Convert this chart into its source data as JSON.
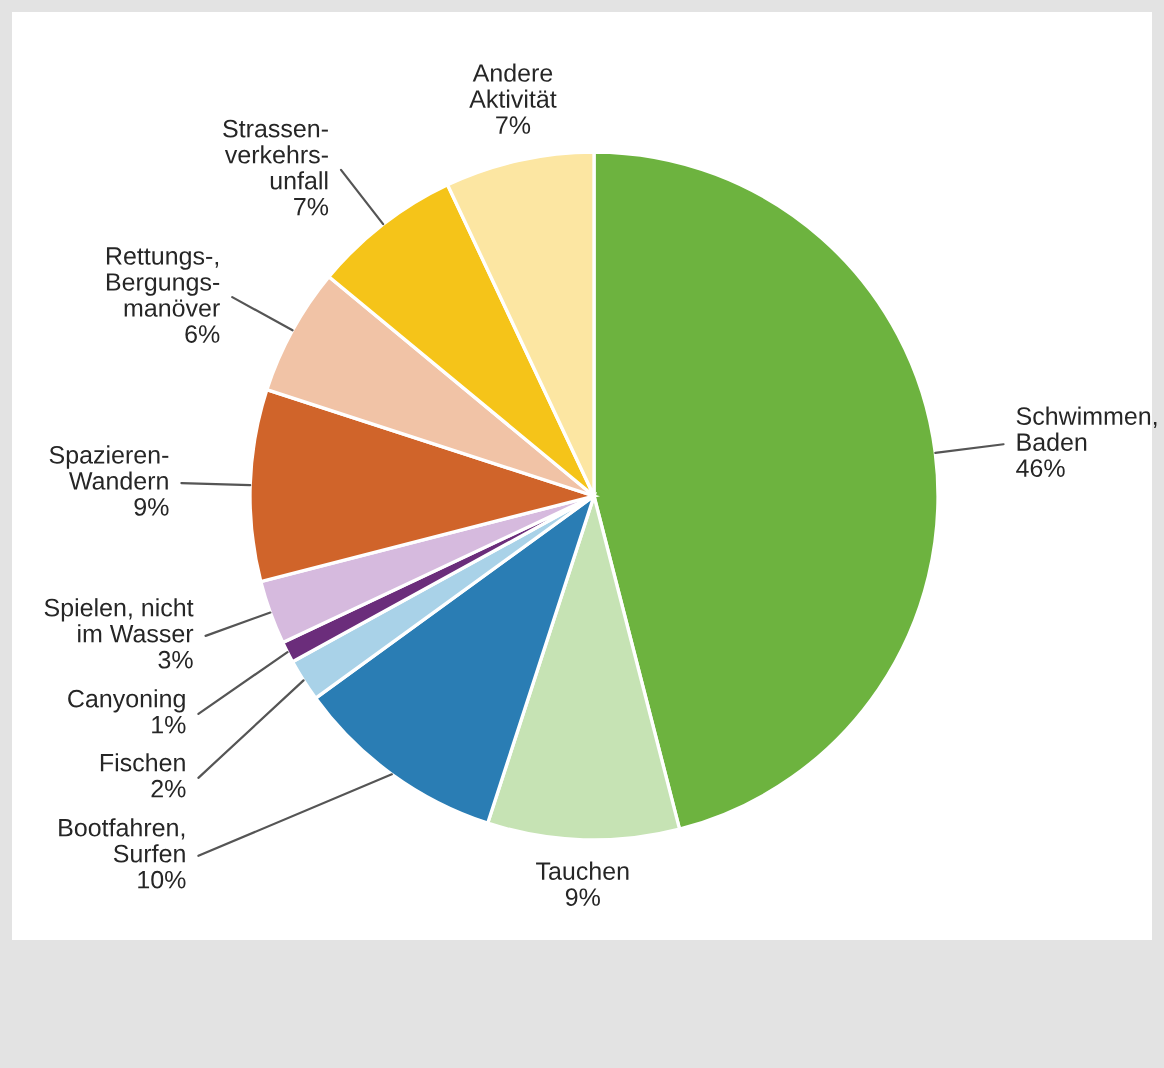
{
  "chart_data": {
    "type": "pie",
    "categories": [
      "Schwimmen,\nBaden",
      "Tauchen",
      "Bootfahren,\nSurfen",
      "Fischen",
      "Canyoning",
      "Spielen, nicht\nim Wasser",
      "Spazieren-\nWandern",
      "Rettungs-,\nBergungs-\nmanöver",
      "Strassen-\nverkehrs-\nunfall",
      "Andere\nAktivität"
    ],
    "values": [
      46,
      9,
      10,
      2,
      1,
      3,
      9,
      6,
      7,
      7
    ],
    "value_labels": [
      "46%",
      "9%",
      "10%",
      "2%",
      "1%",
      "3%",
      "9%",
      "6%",
      "7%",
      "7%"
    ],
    "colors": [
      "#6db33f",
      "#c6e3b4",
      "#2a7db4",
      "#a9d2e8",
      "#6b2d7b",
      "#d6bade",
      "#d0642a",
      "#f1c3a6",
      "#f5c419",
      "#fce6a2"
    ],
    "legend": false
  }
}
